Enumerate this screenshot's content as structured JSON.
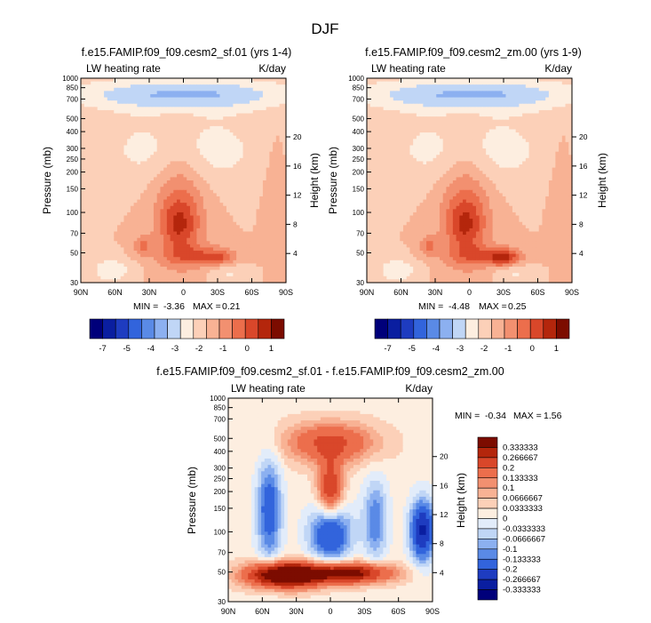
{
  "figure_title": "DJF",
  "colors": {
    "scale_main": [
      "#00007a",
      "#0a1ea0",
      "#1e3cc0",
      "#3264dc",
      "#5a8ae6",
      "#8cb0f0",
      "#c0d6f6",
      "#fdeee0",
      "#fcd0b8",
      "#f8b294",
      "#f29070",
      "#ec6e4c",
      "#d9472a",
      "#b4260c",
      "#7c0c00"
    ],
    "scale_diff": [
      "#00007a",
      "#0a1ea0",
      "#1e3cc0",
      "#3264dc",
      "#5a8ae6",
      "#8cb0f0",
      "#c0d6f6",
      "#e2ecfa",
      "#fdeee0",
      "#fcd0b8",
      "#f8b294",
      "#f29070",
      "#ec6e4c",
      "#d9472a",
      "#b4260c",
      "#7c0c00"
    ]
  },
  "chart_data": [
    {
      "type": "heatmap",
      "title": "f.e15.FAMIP.f09_f09.cesm2_sf.01 (yrs 1-4)",
      "left_label": "LW heating rate",
      "right_label": "K/day",
      "ylabel": "Pressure (mb)",
      "y2label": "Height (km)",
      "x_ticks": [
        "90N",
        "60N",
        "30N",
        "0",
        "30S",
        "60S",
        "90S"
      ],
      "y_ticks": [
        "30",
        "50",
        "70",
        "100",
        "150",
        "200",
        "250",
        "300",
        "400",
        "500",
        "700",
        "850",
        "1000"
      ],
      "y2_ticks": [
        "20",
        "16",
        "12",
        "8",
        "4"
      ],
      "min_label": "MIN = ",
      "min_value": "-3.36",
      "max_label": "MAX = ",
      "max_value": "0.21",
      "colorbar_labels": [
        "-7",
        "-5",
        "-4",
        "-3",
        "-2",
        "-1",
        "0",
        "1"
      ]
    },
    {
      "type": "heatmap",
      "title": "f.e15.FAMIP.f09_f09.cesm2_zm.00 (yrs 1-9)",
      "left_label": "LW heating rate",
      "right_label": "K/day",
      "ylabel": "Pressure (mb)",
      "y2label": "Height (km)",
      "x_ticks": [
        "90N",
        "60N",
        "30N",
        "0",
        "30S",
        "60S",
        "90S"
      ],
      "y_ticks": [
        "30",
        "50",
        "70",
        "100",
        "150",
        "200",
        "250",
        "300",
        "400",
        "500",
        "700",
        "850",
        "1000"
      ],
      "y2_ticks": [
        "20",
        "16",
        "12",
        "8",
        "4"
      ],
      "min_label": "MIN = ",
      "min_value": "-4.48",
      "max_label": "MAX = ",
      "max_value": "0.25",
      "colorbar_labels": [
        "-7",
        "-5",
        "-4",
        "-3",
        "-2",
        "-1",
        "0",
        "1"
      ]
    },
    {
      "type": "heatmap",
      "title": "f.e15.FAMIP.f09_f09.cesm2_sf.01 - f.e15.FAMIP.f09_f09.cesm2_zm.00",
      "left_label": "LW heating rate",
      "right_label": "K/day",
      "ylabel": "Pressure (mb)",
      "y2label": "Height (km)",
      "x_ticks": [
        "90N",
        "60N",
        "30N",
        "0",
        "30S",
        "60S",
        "90S"
      ],
      "y_ticks": [
        "30",
        "50",
        "70",
        "100",
        "150",
        "200",
        "250",
        "300",
        "400",
        "500",
        "700",
        "850",
        "1000"
      ],
      "y2_ticks": [
        "20",
        "16",
        "12",
        "8",
        "4"
      ],
      "min_label": "MIN = ",
      "min_value": "-0.34",
      "max_label": "MAX = ",
      "max_value": "1.56",
      "colorbar_labels": [
        "0.333333",
        "0.266667",
        "0.2",
        "0.133333",
        "0.1",
        "0.0666667",
        "0.0333333",
        "0",
        "-0.0333333",
        "-0.0666667",
        "-0.1",
        "-0.133333",
        "-0.2",
        "-0.266667",
        "-0.333333"
      ]
    }
  ]
}
